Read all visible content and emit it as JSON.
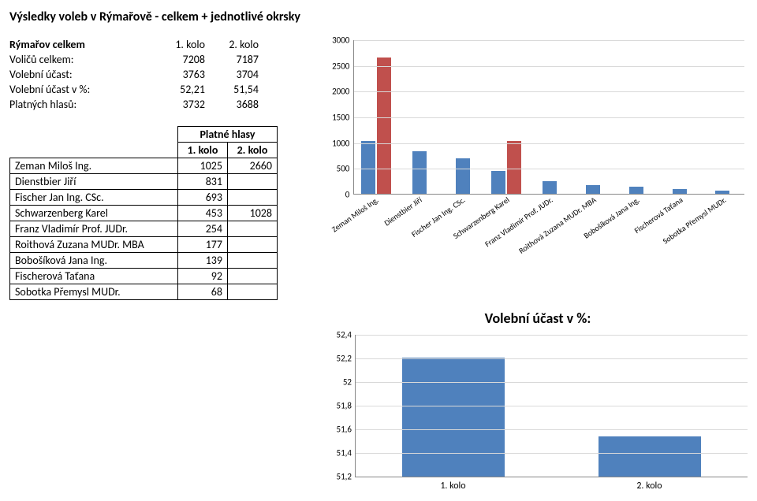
{
  "title": "Výsledky voleb v Rýmařově - celkem + jednotlivé okrsky",
  "stats": {
    "heading": "Rýmařov celkem",
    "col1": "1. kolo",
    "col2": "2. kolo",
    "rows": [
      {
        "label": "Voličů celkem:",
        "v1": "7208",
        "v2": "7187"
      },
      {
        "label": "Volební účast:",
        "v1": "3763",
        "v2": "3704"
      },
      {
        "label": "Volební účast v %:",
        "v1": "52,21",
        "v2": "51,54"
      },
      {
        "label": "Platných hlasů:",
        "v1": "3732",
        "v2": "3688"
      }
    ]
  },
  "results": {
    "platne": "Platné hlasy",
    "col1": "1. kolo",
    "col2": "2. kolo",
    "rows": [
      {
        "name": "Zeman Miloš Ing.",
        "v1": "1025",
        "v2": "2660"
      },
      {
        "name": "Dienstbier Jiří",
        "v1": "831",
        "v2": ""
      },
      {
        "name": "Fischer Jan Ing. CSc.",
        "v1": "693",
        "v2": ""
      },
      {
        "name": "Schwarzenberg Karel",
        "v1": "453",
        "v2": "1028"
      },
      {
        "name": "Franz Vladimír Prof. JUDr.",
        "v1": "254",
        "v2": ""
      },
      {
        "name": "Roithová Zuzana MUDr. MBA",
        "v1": "177",
        "v2": ""
      },
      {
        "name": "Bobošíková Jana Ing.",
        "v1": "139",
        "v2": ""
      },
      {
        "name": "Fischerová Taťana",
        "v1": "92",
        "v2": ""
      },
      {
        "name": "Sobotka Přemysl MUDr.",
        "v1": "68",
        "v2": ""
      }
    ]
  },
  "chart1": {
    "type": "bar",
    "ymax": 3000,
    "ystep": 500,
    "series_colors": [
      "#4f81bd",
      "#c0504d"
    ],
    "background": "#ffffff",
    "grid_color": "#d9d9d9",
    "categories": [
      "Zeman Miloš Ing.",
      "Dienstbier Jiří",
      "Fischer Jan Ing. CSc.",
      "Schwarzenberg Karel",
      "Franz Vladimír Prof. JUDr.",
      "Roithová Zuzana MUDr. MBA",
      "Bobošíková Jana Ing.",
      "Fischerová Taťana",
      "Sobotka Přemysl MUDr."
    ],
    "series": [
      [
        1025,
        831,
        693,
        453,
        254,
        177,
        139,
        92,
        68
      ],
      [
        2660,
        null,
        null,
        1028,
        null,
        null,
        null,
        null,
        null
      ]
    ]
  },
  "chart2": {
    "type": "bar",
    "title": "Volební účast v %:",
    "ymin": 51.2,
    "ymax": 52.4,
    "ystep": 0.2,
    "color": "#4f81bd",
    "grid_color": "#d9d9d9",
    "categories": [
      "1. kolo",
      "2. kolo"
    ],
    "values": [
      52.21,
      51.54
    ],
    "yTickLabels": [
      "51,2",
      "51,4",
      "51,6",
      "51,8",
      "52",
      "52,2",
      "52,4"
    ]
  }
}
